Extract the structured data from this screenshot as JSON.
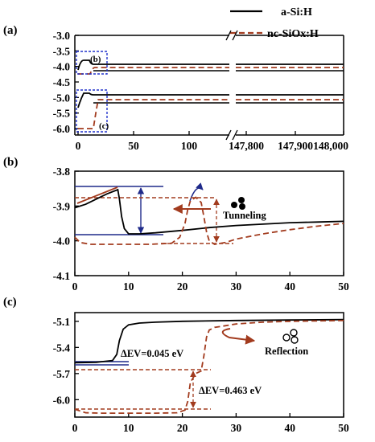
{
  "series_names": [
    "a-Si:H",
    "nc-SiOx:H"
  ],
  "colors": {
    "black": "#000000",
    "red": "#a23b1e",
    "blue": "#1f2a8a",
    "inset_box": "#2233cc"
  },
  "chart_data": [
    {
      "panel": "(a)",
      "type": "line",
      "insets": [
        "(b)",
        "(c)"
      ],
      "x_ticks_left": [
        "0",
        "50",
        "100"
      ],
      "x_ticks_right": [
        "147,800",
        "147,900",
        "148,000"
      ],
      "y_ticks": [
        "-3.0",
        "-3.5",
        "-4.0",
        "-4.5",
        "-5.0",
        "-5.5",
        "-6.0"
      ],
      "ylim": [
        -6.3,
        -3.0
      ],
      "axis_break": true,
      "grid": false,
      "legend_position": "top-right"
    },
    {
      "panel": "(b)",
      "type": "line",
      "x_ticks": [
        "0",
        "10",
        "20",
        "30",
        "40",
        "50"
      ],
      "y_ticks": [
        "-3.8",
        "-3.9",
        "-4.0",
        "-4.1"
      ],
      "xlim": [
        0,
        50
      ],
      "ylim": [
        -4.1,
        -3.8
      ],
      "annotations": [
        "Tunneling"
      ],
      "series": [
        {
          "name": "a-Si:H",
          "points": [
            [
              0,
              -3.905
            ],
            [
              2,
              -3.895
            ],
            [
              4,
              -3.88
            ],
            [
              6,
              -3.865
            ],
            [
              8,
              -3.853
            ],
            [
              8.3,
              -3.88
            ],
            [
              8.7,
              -3.93
            ],
            [
              9.2,
              -3.965
            ],
            [
              10,
              -3.98
            ],
            [
              12,
              -3.98
            ],
            [
              15,
              -3.977
            ],
            [
              20,
              -3.97
            ],
            [
              25,
              -3.962
            ],
            [
              30,
              -3.956
            ],
            [
              35,
              -3.952
            ],
            [
              40,
              -3.948
            ],
            [
              45,
              -3.946
            ],
            [
              50,
              -3.944
            ]
          ]
        },
        {
          "name": "nc-SiOx:H",
          "points": [
            [
              0,
              -3.99
            ],
            [
              1,
              -4.005
            ],
            [
              3,
              -4.01
            ],
            [
              8,
              -4.01
            ],
            [
              14,
              -4.01
            ],
            [
              18,
              -4.007
            ],
            [
              19.5,
              -3.99
            ],
            [
              20.5,
              -3.95
            ],
            [
              21,
              -3.91
            ],
            [
              21.5,
              -3.885
            ],
            [
              22.5,
              -3.875
            ],
            [
              23.5,
              -3.89
            ],
            [
              24,
              -3.93
            ],
            [
              24.5,
              -3.975
            ],
            [
              25,
              -4.0
            ],
            [
              26,
              -4.01
            ],
            [
              28,
              -4.005
            ],
            [
              30,
              -3.995
            ],
            [
              35,
              -3.98
            ],
            [
              40,
              -3.968
            ],
            [
              45,
              -3.958
            ],
            [
              50,
              -3.95
            ]
          ]
        }
      ]
    },
    {
      "panel": "(c)",
      "type": "line",
      "x_ticks": [
        "0",
        "10",
        "20",
        "30",
        "40",
        "50"
      ],
      "y_ticks": [
        "-5.1",
        "-5.4",
        "-5.7",
        "-6.0"
      ],
      "xlim": [
        0,
        50
      ],
      "ylim": [
        -6.2,
        -5.0
      ],
      "annotations": [
        "ΔEV=0.045 eV",
        "ΔEV=0.463 eV",
        "Reflection"
      ],
      "series": [
        {
          "name": "a-Si:H",
          "points": [
            [
              0,
              -5.575
            ],
            [
              4,
              -5.57
            ],
            [
              7,
              -5.55
            ],
            [
              7.8,
              -5.48
            ],
            [
              8.3,
              -5.32
            ],
            [
              9,
              -5.19
            ],
            [
              10,
              -5.14
            ],
            [
              12,
              -5.12
            ],
            [
              15,
              -5.11
            ],
            [
              20,
              -5.1
            ],
            [
              30,
              -5.09
            ],
            [
              40,
              -5.085
            ],
            [
              50,
              -5.08
            ]
          ]
        },
        {
          "name": "nc-SiOx:H",
          "points": [
            [
              0,
              -6.11
            ],
            [
              2,
              -6.15
            ],
            [
              5,
              -6.155
            ],
            [
              10,
              -6.155
            ],
            [
              15,
              -6.155
            ],
            [
              19,
              -6.15
            ],
            [
              20.5,
              -6.12
            ],
            [
              21,
              -6.02
            ],
            [
              21.5,
              -5.8
            ],
            [
              22.5,
              -5.7
            ],
            [
              23.5,
              -5.67
            ],
            [
              24,
              -5.5
            ],
            [
              24.5,
              -5.28
            ],
            [
              25,
              -5.2
            ],
            [
              26,
              -5.17
            ],
            [
              28,
              -5.15
            ],
            [
              30,
              -5.13
            ],
            [
              35,
              -5.11
            ],
            [
              40,
              -5.1
            ],
            [
              45,
              -5.095
            ],
            [
              50,
              -5.09
            ]
          ]
        }
      ]
    }
  ]
}
